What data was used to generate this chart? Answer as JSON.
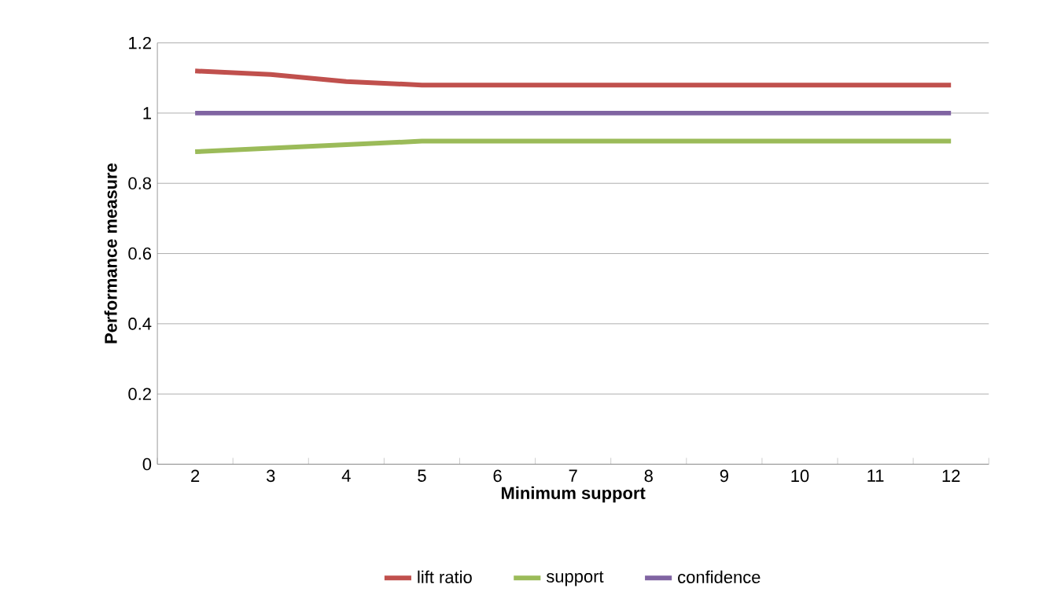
{
  "chart_data": {
    "type": "line",
    "xlabel": "Minimum support",
    "ylabel": "Performance measure",
    "categories": [
      "2",
      "3",
      "4",
      "5",
      "6",
      "7",
      "8",
      "9",
      "10",
      "11",
      "12"
    ],
    "series": [
      {
        "name": "lift ratio",
        "color": "#c0504d",
        "values": [
          1.12,
          1.11,
          1.09,
          1.08,
          1.08,
          1.08,
          1.08,
          1.08,
          1.08,
          1.08,
          1.08
        ]
      },
      {
        "name": "support",
        "color": "#9bbb59",
        "values": [
          0.89,
          0.9,
          0.91,
          0.92,
          0.92,
          0.92,
          0.92,
          0.92,
          0.92,
          0.92,
          0.92
        ]
      },
      {
        "name": "confidence",
        "color": "#8064a2",
        "values": [
          1,
          1,
          1,
          1,
          1,
          1,
          1,
          1,
          1,
          1,
          1
        ]
      }
    ],
    "ylim": [
      0,
      1.2
    ],
    "yticks": [
      0,
      0.2,
      0.4,
      0.6,
      0.8,
      1,
      1.2
    ],
    "grid": "y",
    "legend": "bottom",
    "marker": "none",
    "line_style": "solid"
  }
}
